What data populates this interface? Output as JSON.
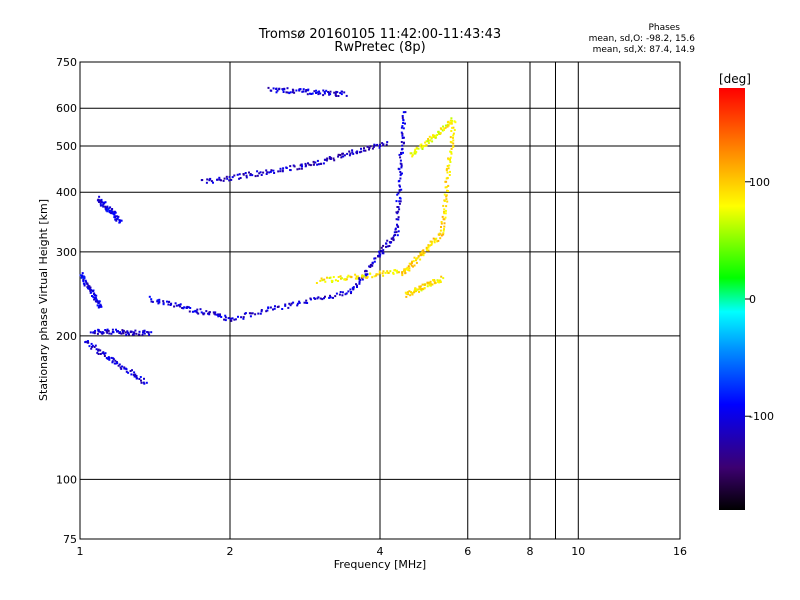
{
  "header": {
    "title_line1": "Tromsø 20160105 11:42:00-11:43:43",
    "title_line2": "RwPretec (8p)",
    "phases_title": "Phases",
    "phases_o": "mean, sd,O: -98.2, 15.6",
    "phases_x": "mean, sd,X:  87.4, 14.9"
  },
  "chart_data": {
    "type": "scatter",
    "xlabel": "Frequency [MHz]",
    "ylabel": "Stationary phase Virtual Height [km]",
    "x_scale": "log",
    "y_scale": "log",
    "xlim": [
      1,
      16
    ],
    "ylim": [
      75,
      750
    ],
    "x_ticks": [
      1,
      2,
      4,
      6,
      8,
      10,
      16
    ],
    "x_tick_labels": [
      "1",
      "2",
      "4",
      "6",
      "8",
      "10",
      "16"
    ],
    "y_ticks": [
      75,
      100,
      200,
      300,
      400,
      500,
      600,
      750
    ],
    "y_tick_labels": [
      "75",
      "100",
      "200",
      "300",
      "400",
      "500",
      "600",
      "750"
    ],
    "grid": true,
    "colorbar": {
      "label": "[deg]",
      "range": [
        -180,
        180
      ],
      "tick_values": [
        100,
        0,
        -100
      ],
      "tick_labels": [
        "100",
        "0",
        "-100"
      ],
      "colors": [
        "#000000",
        "#3c0070",
        "#0000ff",
        "#0090ff",
        "#00ffff",
        "#00ff00",
        "#ffff00",
        "#ff8000",
        "#ff0000"
      ]
    },
    "series": [
      {
        "values": [
          {
            "f_range": [
              1.05,
              1.38
            ],
            "h_range": [
              205,
              204
            ],
            "phase": -110
          },
          {
            "f_range": [
              1.38,
              2.0
            ],
            "h_range": [
              240,
              218
            ],
            "phase": -105
          },
          {
            "f_range": [
              2.0,
              3.5
            ],
            "h_range": [
              218,
              250
            ],
            "phase": -108
          },
          {
            "f_range": [
              3.5,
              4.3
            ],
            "h_range": [
              250,
              330
            ],
            "phase": -110
          },
          {
            "f_range": [
              4.3,
              4.45
            ],
            "h_range": [
              330,
              590
            ],
            "phase": -105
          },
          {
            "f_range": [
              1.75,
              2.8
            ],
            "h_range": [
              422,
              455
            ],
            "phase": -110
          },
          {
            "f_range": [
              2.8,
              4.1
            ],
            "h_range": [
              455,
              510
            ],
            "phase": -115
          },
          {
            "f_range": [
              2.4,
              3.4
            ],
            "h_range": [
              660,
              645
            ],
            "phase": -105
          },
          {
            "f_range": [
              1.0,
              1.1
            ],
            "h_range": [
              270,
              230
            ],
            "phase": -100
          },
          {
            "f_range": [
              1.02,
              1.35
            ],
            "h_range": [
              195,
              160
            ],
            "phase": -105
          },
          {
            "f_range": [
              1.08,
              1.2
            ],
            "h_range": [
              390,
              350
            ],
            "phase": -100
          }
        ]
      },
      {
        "values": [
          {
            "f_range": [
              3.0,
              4.5
            ],
            "h_range": [
              262,
              275
            ],
            "phase": 85
          },
          {
            "f_range": [
              4.4,
              5.3
            ],
            "h_range": [
              270,
              330
            ],
            "phase": 95
          },
          {
            "f_range": [
              5.3,
              5.6
            ],
            "h_range": [
              330,
              560
            ],
            "phase": 90
          },
          {
            "f_range": [
              4.5,
              5.3
            ],
            "h_range": [
              245,
              265
            ],
            "phase": 88
          },
          {
            "f_range": [
              4.6,
              5.6
            ],
            "h_range": [
              480,
              570
            ],
            "phase": 80
          }
        ]
      }
    ]
  }
}
